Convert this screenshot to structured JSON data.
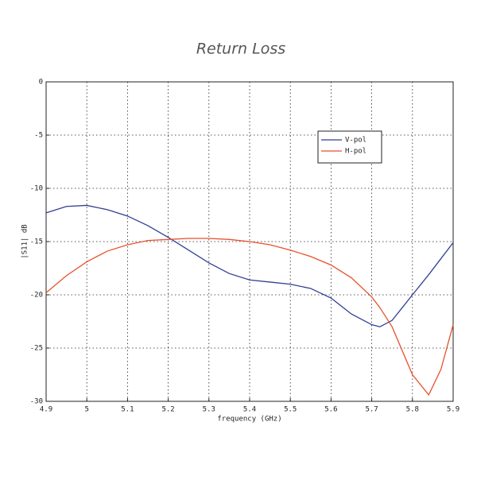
{
  "chart_data": {
    "type": "line",
    "title": "Return Loss",
    "xlabel": "frequency (GHz)",
    "ylabel": "|S11| dB",
    "x": [
      4.9,
      4.95,
      5.0,
      5.05,
      5.1,
      5.15,
      5.2,
      5.25,
      5.3,
      5.35,
      5.4,
      5.45,
      5.5,
      5.55,
      5.6,
      5.65,
      5.7,
      5.72,
      5.75,
      5.8,
      5.84,
      5.87,
      5.9
    ],
    "series": [
      {
        "name": "V-pol",
        "color": "#2f3f95",
        "values": [
          -12.3,
          -11.7,
          -11.6,
          -12.0,
          -12.6,
          -13.5,
          -14.6,
          -15.8,
          -17.0,
          -18.0,
          -18.6,
          -18.8,
          -19.0,
          -19.4,
          -20.3,
          -21.8,
          -22.8,
          -23.0,
          -22.4,
          -20.0,
          -18.1,
          -16.6,
          -15.1
        ]
      },
      {
        "name": "H-pol",
        "color": "#e8512c",
        "values": [
          -19.8,
          -18.2,
          -16.9,
          -15.9,
          -15.3,
          -14.9,
          -14.8,
          -14.7,
          -14.7,
          -14.8,
          -15.0,
          -15.3,
          -15.8,
          -16.4,
          -17.2,
          -18.4,
          -20.2,
          -21.2,
          -23.0,
          -27.5,
          -29.4,
          -27.0,
          -22.8
        ]
      }
    ],
    "xlim": [
      4.9,
      5.9
    ],
    "xticks": [
      4.9,
      5,
      5.1,
      5.2,
      5.3,
      5.4,
      5.5,
      5.6,
      5.7,
      5.8,
      5.9
    ],
    "ylim": [
      -30,
      0
    ],
    "yticks": [
      0,
      -5,
      -10,
      -15,
      -20,
      -25,
      -30
    ],
    "grid": true,
    "legend": "upper right"
  }
}
